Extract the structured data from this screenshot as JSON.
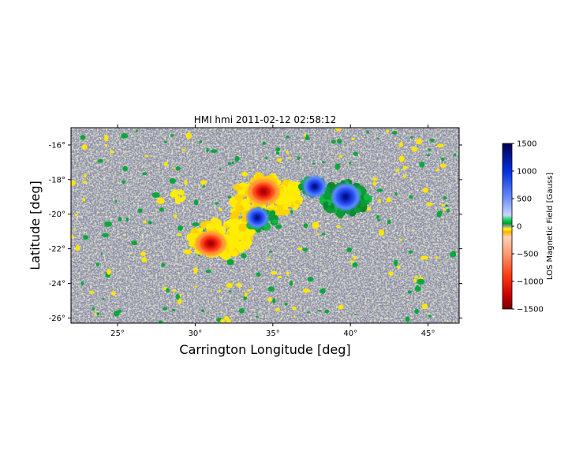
{
  "chart_data": {
    "type": "heatmap",
    "title": "HMI hmi 2011-02-12 02:58:12",
    "xlabel": "Carrington Longitude [deg]",
    "ylabel": "Latitude [deg]",
    "xlim": [
      22,
      47
    ],
    "ylim": [
      -26.3,
      -15
    ],
    "x_ticks": [
      25,
      30,
      35,
      40,
      45
    ],
    "x_tick_labels": [
      "25°",
      "30°",
      "35°",
      "40°",
      "45°"
    ],
    "y_ticks": [
      -16,
      -18,
      -20,
      -22,
      -24,
      -26
    ],
    "y_tick_labels": [
      "-16°",
      "-18°",
      "-20°",
      "-22°",
      "-24°",
      "-26°"
    ],
    "colorbar": {
      "label": "LOS Magnetic Field [Gauss]",
      "range": [
        -1500,
        1500
      ],
      "ticks": [
        1500,
        1000,
        500,
        0,
        -500,
        -1000,
        -1500
      ],
      "tick_labels": [
        "1500",
        "1000",
        "500",
        "0",
        "−500",
        "−1000",
        "−1500"
      ],
      "stops": [
        {
          "value": -1500,
          "color": "#7a0000"
        },
        {
          "value": -1250,
          "color": "#c80000"
        },
        {
          "value": -900,
          "color": "#ff3a10"
        },
        {
          "value": -500,
          "color": "#ff9a70"
        },
        {
          "value": -200,
          "color": "#ffd0b8"
        },
        {
          "value": -100,
          "color": "#ffb000"
        },
        {
          "value": -50,
          "color": "#ffff00"
        },
        {
          "value": 0,
          "color": "#9a9a9a"
        },
        {
          "value": 50,
          "color": "#009a30"
        },
        {
          "value": 100,
          "color": "#00d040"
        },
        {
          "value": 200,
          "color": "#c8d8ff"
        },
        {
          "value": 500,
          "color": "#6f8fff"
        },
        {
          "value": 1000,
          "color": "#0030e0"
        },
        {
          "value": 1500,
          "color": "#000050"
        }
      ]
    },
    "features": [
      {
        "polarity": "negative",
        "lon": 34.4,
        "lat": -18.7,
        "peak": -1400
      },
      {
        "polarity": "negative",
        "lon": 31.0,
        "lat": -21.7,
        "peak": -1300
      },
      {
        "polarity": "positive",
        "lon": 39.7,
        "lat": -19.0,
        "peak": 1500
      },
      {
        "polarity": "positive",
        "lon": 37.7,
        "lat": -18.4,
        "peak": 900
      },
      {
        "polarity": "positive",
        "lon": 34.0,
        "lat": -20.2,
        "peak": 800
      }
    ]
  }
}
